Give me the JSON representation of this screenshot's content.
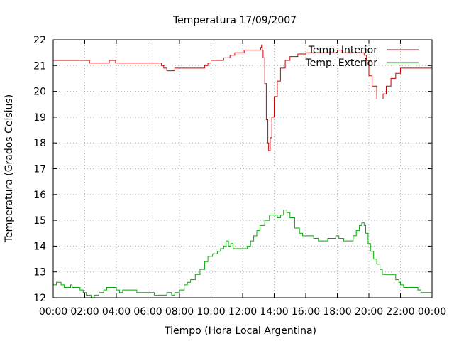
{
  "chart_data": {
    "type": "line",
    "title": "Temperatura 17/09/2007",
    "xlabel": "Tiempo (Hora Local Argentina)",
    "ylabel": "Temperatura (Grados Celsius)",
    "xlim": [
      0,
      24
    ],
    "ylim": [
      12,
      22
    ],
    "x_ticks": [
      "00:00",
      "02:00",
      "04:00",
      "06:00",
      "08:00",
      "10:00",
      "12:00",
      "14:00",
      "16:00",
      "18:00",
      "20:00",
      "22:00",
      "00:00"
    ],
    "y_ticks": [
      "12",
      "13",
      "14",
      "15",
      "16",
      "17",
      "18",
      "19",
      "20",
      "21",
      "22"
    ],
    "grid": true,
    "legend_position": "top-right",
    "colors": {
      "interior": "#cc0000",
      "exterior": "#00aa00"
    },
    "series": [
      {
        "name": "Temp. Interior",
        "points": [
          [
            0.0,
            21.2
          ],
          [
            2.25,
            21.2
          ],
          [
            2.3,
            21.1
          ],
          [
            3.5,
            21.1
          ],
          [
            3.55,
            21.2
          ],
          [
            3.9,
            21.2
          ],
          [
            3.95,
            21.1
          ],
          [
            6.8,
            21.1
          ],
          [
            6.85,
            21.0
          ],
          [
            7.0,
            20.9
          ],
          [
            7.2,
            20.8
          ],
          [
            7.6,
            20.8
          ],
          [
            7.7,
            20.9
          ],
          [
            9.5,
            20.9
          ],
          [
            9.6,
            21.0
          ],
          [
            9.8,
            21.1
          ],
          [
            10.0,
            21.2
          ],
          [
            10.7,
            21.2
          ],
          [
            10.8,
            21.3
          ],
          [
            11.2,
            21.4
          ],
          [
            11.5,
            21.5
          ],
          [
            12.0,
            21.5
          ],
          [
            12.1,
            21.6
          ],
          [
            13.1,
            21.6
          ],
          [
            13.15,
            21.7
          ],
          [
            13.2,
            21.8
          ],
          [
            13.25,
            21.6
          ],
          [
            13.3,
            21.3
          ],
          [
            13.4,
            20.3
          ],
          [
            13.5,
            18.9
          ],
          [
            13.6,
            18.0
          ],
          [
            13.65,
            17.7
          ],
          [
            13.75,
            18.2
          ],
          [
            13.85,
            19.0
          ],
          [
            14.0,
            19.8
          ],
          [
            14.2,
            20.4
          ],
          [
            14.4,
            20.9
          ],
          [
            14.7,
            21.2
          ],
          [
            15.0,
            21.35
          ],
          [
            15.5,
            21.45
          ],
          [
            16.0,
            21.5
          ],
          [
            17.5,
            21.5
          ],
          [
            18.0,
            21.6
          ],
          [
            18.3,
            21.5
          ],
          [
            19.5,
            21.5
          ],
          [
            19.7,
            21.4
          ],
          [
            19.85,
            21.2
          ],
          [
            20.0,
            20.6
          ],
          [
            20.2,
            20.2
          ],
          [
            20.5,
            19.7
          ],
          [
            20.8,
            19.7
          ],
          [
            20.9,
            19.9
          ],
          [
            21.1,
            20.2
          ],
          [
            21.4,
            20.5
          ],
          [
            21.7,
            20.7
          ],
          [
            22.0,
            20.9
          ],
          [
            24.0,
            20.9
          ]
        ]
      },
      {
        "name": "Temp. Exterior",
        "points": [
          [
            0.0,
            12.5
          ],
          [
            0.2,
            12.6
          ],
          [
            0.4,
            12.6
          ],
          [
            0.5,
            12.5
          ],
          [
            0.7,
            12.4
          ],
          [
            1.0,
            12.4
          ],
          [
            1.1,
            12.5
          ],
          [
            1.2,
            12.4
          ],
          [
            1.7,
            12.3
          ],
          [
            1.9,
            12.2
          ],
          [
            2.1,
            12.1
          ],
          [
            2.4,
            12.0
          ],
          [
            2.6,
            12.1
          ],
          [
            2.9,
            12.2
          ],
          [
            3.2,
            12.3
          ],
          [
            3.4,
            12.4
          ],
          [
            3.8,
            12.4
          ],
          [
            4.0,
            12.3
          ],
          [
            4.2,
            12.2
          ],
          [
            4.4,
            12.3
          ],
          [
            5.1,
            12.3
          ],
          [
            5.3,
            12.2
          ],
          [
            6.2,
            12.2
          ],
          [
            6.4,
            12.1
          ],
          [
            7.0,
            12.1
          ],
          [
            7.2,
            12.2
          ],
          [
            7.5,
            12.1
          ],
          [
            7.7,
            12.2
          ],
          [
            8.0,
            12.3
          ],
          [
            8.3,
            12.5
          ],
          [
            8.5,
            12.6
          ],
          [
            8.7,
            12.7
          ],
          [
            9.0,
            12.9
          ],
          [
            9.3,
            13.1
          ],
          [
            9.6,
            13.4
          ],
          [
            9.8,
            13.6
          ],
          [
            10.1,
            13.7
          ],
          [
            10.4,
            13.8
          ],
          [
            10.6,
            13.9
          ],
          [
            10.8,
            14.0
          ],
          [
            10.95,
            14.2
          ],
          [
            11.1,
            14.0
          ],
          [
            11.25,
            14.1
          ],
          [
            11.4,
            13.9
          ],
          [
            11.7,
            13.9
          ],
          [
            12.0,
            13.9
          ],
          [
            12.3,
            14.0
          ],
          [
            12.5,
            14.2
          ],
          [
            12.7,
            14.4
          ],
          [
            12.9,
            14.6
          ],
          [
            13.1,
            14.8
          ],
          [
            13.4,
            15.0
          ],
          [
            13.7,
            15.2
          ],
          [
            14.0,
            15.2
          ],
          [
            14.2,
            15.1
          ],
          [
            14.4,
            15.2
          ],
          [
            14.6,
            15.4
          ],
          [
            14.8,
            15.3
          ],
          [
            15.0,
            15.1
          ],
          [
            15.3,
            14.7
          ],
          [
            15.6,
            14.5
          ],
          [
            15.8,
            14.4
          ],
          [
            16.2,
            14.4
          ],
          [
            16.5,
            14.3
          ],
          [
            16.8,
            14.2
          ],
          [
            17.1,
            14.2
          ],
          [
            17.4,
            14.3
          ],
          [
            17.7,
            14.3
          ],
          [
            17.9,
            14.4
          ],
          [
            18.1,
            14.3
          ],
          [
            18.4,
            14.2
          ],
          [
            18.8,
            14.2
          ],
          [
            19.0,
            14.4
          ],
          [
            19.2,
            14.6
          ],
          [
            19.4,
            14.8
          ],
          [
            19.55,
            14.9
          ],
          [
            19.7,
            14.8
          ],
          [
            19.8,
            14.5
          ],
          [
            19.95,
            14.1
          ],
          [
            20.1,
            13.8
          ],
          [
            20.3,
            13.5
          ],
          [
            20.5,
            13.3
          ],
          [
            20.7,
            13.1
          ],
          [
            20.85,
            12.9
          ],
          [
            21.5,
            12.9
          ],
          [
            21.7,
            12.7
          ],
          [
            21.9,
            12.6
          ],
          [
            22.0,
            12.5
          ],
          [
            22.2,
            12.4
          ],
          [
            23.0,
            12.4
          ],
          [
            23.1,
            12.3
          ],
          [
            23.3,
            12.2
          ],
          [
            24.0,
            12.2
          ]
        ]
      }
    ]
  }
}
